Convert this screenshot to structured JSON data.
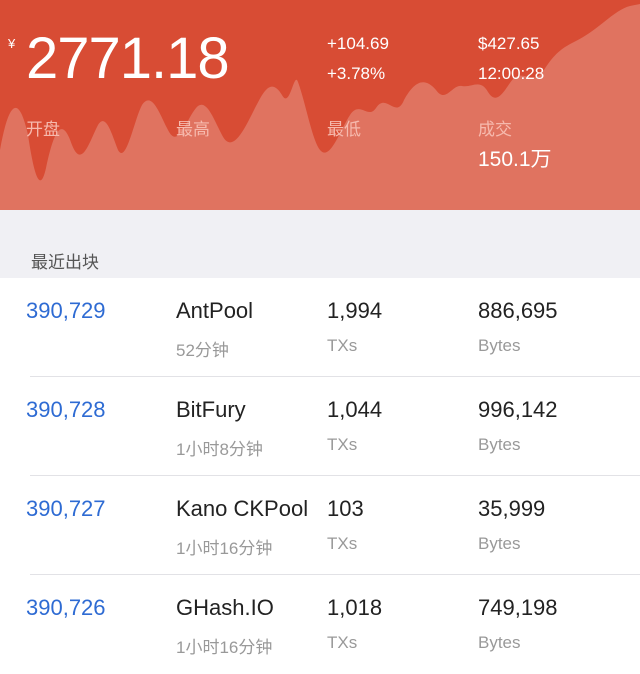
{
  "ticker": {
    "currency_symbol": "¥",
    "price": "2771.18",
    "change_abs": "+104.69",
    "change_pct": "+3.78%",
    "usd_price": "$427.65",
    "time": "12:00:28",
    "open_label": "开盘",
    "open_value": "",
    "high_label": "最高",
    "high_value": "",
    "low_label": "最低",
    "low_value": "",
    "volume_label": "成交",
    "volume_value": "150.1万"
  },
  "colors": {
    "header_bg": "#d84c34",
    "link_blue": "#2e6bd3",
    "section_bg": "#f0f0f4"
  },
  "section": {
    "title": "最近出块"
  },
  "blocks": [
    {
      "height": "390,729",
      "pool": "AntPool",
      "age": "52分钟",
      "txs": "1,994",
      "txs_unit": "TXs",
      "bytes": "886,695",
      "bytes_unit": "Bytes"
    },
    {
      "height": "390,728",
      "pool": "BitFury",
      "age": "1小时8分钟",
      "txs": "1,044",
      "txs_unit": "TXs",
      "bytes": "996,142",
      "bytes_unit": "Bytes"
    },
    {
      "height": "390,727",
      "pool": "Kano CKPool",
      "age": "1小时16分钟",
      "txs": "103",
      "txs_unit": "TXs",
      "bytes": "35,999",
      "bytes_unit": "Bytes"
    },
    {
      "height": "390,726",
      "pool": "GHash.IO",
      "age": "1小时16分钟",
      "txs": "1,018",
      "txs_unit": "TXs",
      "bytes": "749,198",
      "bytes_unit": "Bytes"
    }
  ]
}
